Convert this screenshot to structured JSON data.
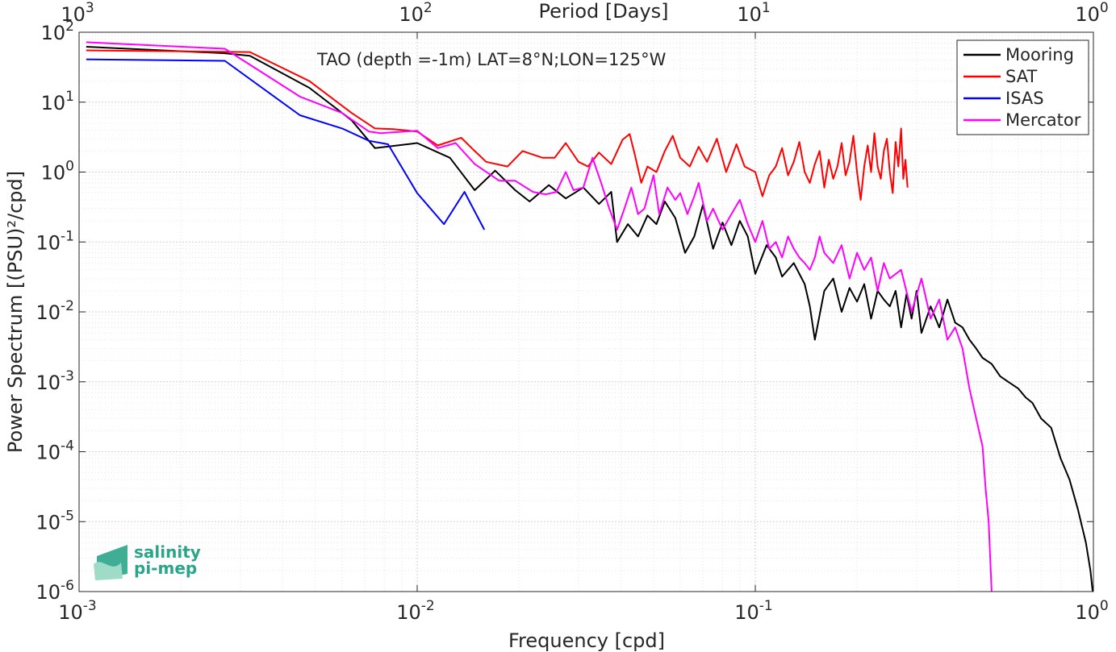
{
  "chart_data": {
    "type": "line",
    "xscale": "log",
    "yscale": "log",
    "xlim": [
      0.001,
      1
    ],
    "ylim": [
      1e-06,
      100
    ],
    "grid": "on (major + minor, dotted)",
    "legend_location": "top-right",
    "xlabel": "Frequency [cpd]",
    "ylabel": "Power Spectrum [(PSU)²/cpd]",
    "top_xlabel": "Period [Days]",
    "annotation": "TAO (depth =-1m) LAT=8°N;LON=125°W",
    "x_ticks": [
      {
        "base": "10",
        "exp": "-3",
        "value": 0.001
      },
      {
        "base": "10",
        "exp": "-2",
        "value": 0.01
      },
      {
        "base": "10",
        "exp": "-1",
        "value": 0.1
      },
      {
        "base": "10",
        "exp": "0",
        "value": 1
      }
    ],
    "top_ticks": [
      {
        "base": "10",
        "exp": "3",
        "value": 0.001
      },
      {
        "base": "10",
        "exp": "2",
        "value": 0.01
      },
      {
        "base": "10",
        "exp": "1",
        "value": 0.1
      },
      {
        "base": "10",
        "exp": "0",
        "value": 1
      }
    ],
    "y_ticks": [
      {
        "base": "10",
        "exp": "2",
        "value": 100
      },
      {
        "base": "10",
        "exp": "1",
        "value": 10
      },
      {
        "base": "10",
        "exp": "0",
        "value": 1
      },
      {
        "base": "10",
        "exp": "-1",
        "value": 0.1
      },
      {
        "base": "10",
        "exp": "-2",
        "value": 0.01
      },
      {
        "base": "10",
        "exp": "-3",
        "value": 0.001
      },
      {
        "base": "10",
        "exp": "-4",
        "value": 0.0001
      },
      {
        "base": "10",
        "exp": "-5",
        "value": 1e-05
      },
      {
        "base": "10",
        "exp": "-6",
        "value": 1e-06
      }
    ],
    "series": [
      {
        "name": "Mooring",
        "color": "#000000",
        "points": [
          [
            0.00105,
            62
          ],
          [
            0.0027,
            50
          ],
          [
            0.0032,
            46
          ],
          [
            0.0048,
            16
          ],
          [
            0.0064,
            5.5
          ],
          [
            0.0075,
            2.2
          ],
          [
            0.01,
            2.6
          ],
          [
            0.0125,
            1.6
          ],
          [
            0.0148,
            0.55
          ],
          [
            0.017,
            1.05
          ],
          [
            0.0195,
            0.55
          ],
          [
            0.0215,
            0.38
          ],
          [
            0.0245,
            0.65
          ],
          [
            0.0275,
            0.42
          ],
          [
            0.031,
            0.6
          ],
          [
            0.0345,
            0.35
          ],
          [
            0.0375,
            0.52
          ],
          [
            0.039,
            0.1
          ],
          [
            0.042,
            0.18
          ],
          [
            0.045,
            0.12
          ],
          [
            0.048,
            0.24
          ],
          [
            0.051,
            0.18
          ],
          [
            0.054,
            0.38
          ],
          [
            0.058,
            0.22
          ],
          [
            0.062,
            0.07
          ],
          [
            0.066,
            0.12
          ],
          [
            0.07,
            0.34
          ],
          [
            0.075,
            0.08
          ],
          [
            0.08,
            0.19
          ],
          [
            0.085,
            0.09
          ],
          [
            0.09,
            0.2
          ],
          [
            0.095,
            0.12
          ],
          [
            0.1,
            0.035
          ],
          [
            0.108,
            0.09
          ],
          [
            0.115,
            0.06
          ],
          [
            0.12,
            0.032
          ],
          [
            0.13,
            0.05
          ],
          [
            0.14,
            0.025
          ],
          [
            0.145,
            0.012
          ],
          [
            0.15,
            0.004
          ],
          [
            0.16,
            0.02
          ],
          [
            0.17,
            0.03
          ],
          [
            0.18,
            0.01
          ],
          [
            0.19,
            0.022
          ],
          [
            0.2,
            0.014
          ],
          [
            0.21,
            0.025
          ],
          [
            0.22,
            0.008
          ],
          [
            0.23,
            0.02
          ],
          [
            0.24,
            0.015
          ],
          [
            0.25,
            0.012
          ],
          [
            0.26,
            0.02
          ],
          [
            0.27,
            0.006
          ],
          [
            0.28,
            0.018
          ],
          [
            0.29,
            0.008
          ],
          [
            0.3,
            0.02
          ],
          [
            0.31,
            0.005
          ],
          [
            0.33,
            0.012
          ],
          [
            0.35,
            0.006
          ],
          [
            0.37,
            0.015
          ],
          [
            0.39,
            0.007
          ],
          [
            0.41,
            0.006
          ],
          [
            0.43,
            0.004
          ],
          [
            0.45,
            0.003
          ],
          [
            0.47,
            0.0022
          ],
          [
            0.5,
            0.0018
          ],
          [
            0.53,
            0.0012
          ],
          [
            0.56,
            0.001
          ],
          [
            0.6,
            0.0008
          ],
          [
            0.63,
            0.0006
          ],
          [
            0.66,
            0.0005
          ],
          [
            0.7,
            0.0003
          ],
          [
            0.75,
            0.00022
          ],
          [
            0.8,
            8e-05
          ],
          [
            0.85,
            4e-05
          ],
          [
            0.9,
            1.5e-05
          ],
          [
            0.95,
            5e-06
          ],
          [
            0.98,
            2e-06
          ],
          [
            0.995,
            1e-06
          ]
        ]
      },
      {
        "name": "SAT",
        "color": "#ff0000",
        "points": [
          [
            0.00105,
            55
          ],
          [
            0.0032,
            52
          ],
          [
            0.0048,
            20
          ],
          [
            0.0064,
            7
          ],
          [
            0.0075,
            4.2
          ],
          [
            0.0085,
            4.1
          ],
          [
            0.01,
            3.8
          ],
          [
            0.0115,
            2.4
          ],
          [
            0.0135,
            3.1
          ],
          [
            0.0148,
            2.0
          ],
          [
            0.016,
            1.4
          ],
          [
            0.0185,
            1.2
          ],
          [
            0.0205,
            2.0
          ],
          [
            0.0235,
            1.6
          ],
          [
            0.0255,
            1.6
          ],
          [
            0.0275,
            2.6
          ],
          [
            0.03,
            1.4
          ],
          [
            0.032,
            1.2
          ],
          [
            0.0345,
            1.9
          ],
          [
            0.0375,
            1.3
          ],
          [
            0.0405,
            2.9
          ],
          [
            0.0425,
            3.5
          ],
          [
            0.044,
            1.8
          ],
          [
            0.046,
            0.7
          ],
          [
            0.048,
            1.2
          ],
          [
            0.051,
            1.0
          ],
          [
            0.054,
            2.0
          ],
          [
            0.057,
            3.3
          ],
          [
            0.06,
            1.6
          ],
          [
            0.064,
            1.2
          ],
          [
            0.068,
            2.3
          ],
          [
            0.072,
            1.4
          ],
          [
            0.077,
            3.0
          ],
          [
            0.082,
            1.0
          ],
          [
            0.088,
            2.5
          ],
          [
            0.093,
            1.2
          ],
          [
            0.1,
            1.0
          ],
          [
            0.105,
            0.45
          ],
          [
            0.11,
            0.9
          ],
          [
            0.115,
            1.2
          ],
          [
            0.12,
            2.2
          ],
          [
            0.125,
            0.9
          ],
          [
            0.13,
            1.4
          ],
          [
            0.135,
            2.7
          ],
          [
            0.14,
            1.0
          ],
          [
            0.145,
            0.7
          ],
          [
            0.15,
            1.3
          ],
          [
            0.155,
            2.0
          ],
          [
            0.16,
            0.6
          ],
          [
            0.165,
            1.5
          ],
          [
            0.17,
            0.8
          ],
          [
            0.175,
            1.2
          ],
          [
            0.18,
            2.6
          ],
          [
            0.185,
            0.9
          ],
          [
            0.19,
            1.4
          ],
          [
            0.195,
            3.3
          ],
          [
            0.2,
            1.0
          ],
          [
            0.205,
            0.4
          ],
          [
            0.21,
            1.2
          ],
          [
            0.215,
            2.4
          ],
          [
            0.22,
            1.0
          ],
          [
            0.225,
            3.6
          ],
          [
            0.23,
            1.2
          ],
          [
            0.235,
            0.8
          ],
          [
            0.24,
            2.0
          ],
          [
            0.245,
            3.0
          ],
          [
            0.25,
            1.0
          ],
          [
            0.255,
            0.5
          ],
          [
            0.26,
            2.7
          ],
          [
            0.265,
            1.2
          ],
          [
            0.27,
            4.2
          ],
          [
            0.274,
            0.8
          ],
          [
            0.278,
            1.5
          ],
          [
            0.282,
            0.6
          ]
        ]
      },
      {
        "name": "ISAS",
        "color": "#0000ff",
        "points": [
          [
            0.00105,
            41
          ],
          [
            0.0027,
            39
          ],
          [
            0.0045,
            6.5
          ],
          [
            0.006,
            4.2
          ],
          [
            0.0072,
            2.8
          ],
          [
            0.0082,
            2.5
          ],
          [
            0.01,
            0.5
          ],
          [
            0.012,
            0.18
          ],
          [
            0.0138,
            0.52
          ],
          [
            0.0158,
            0.15
          ]
        ]
      },
      {
        "name": "Mercator",
        "color": "#ff00ff",
        "points": [
          [
            0.00105,
            72
          ],
          [
            0.0027,
            58
          ],
          [
            0.0045,
            12
          ],
          [
            0.006,
            7
          ],
          [
            0.0072,
            3.8
          ],
          [
            0.0078,
            3.6
          ],
          [
            0.01,
            3.9
          ],
          [
            0.0115,
            2.2
          ],
          [
            0.013,
            2.6
          ],
          [
            0.0148,
            1.3
          ],
          [
            0.0175,
            0.75
          ],
          [
            0.0195,
            0.75
          ],
          [
            0.022,
            0.52
          ],
          [
            0.024,
            0.48
          ],
          [
            0.0258,
            0.52
          ],
          [
            0.0275,
            1.0
          ],
          [
            0.029,
            0.55
          ],
          [
            0.031,
            0.6
          ],
          [
            0.033,
            1.6
          ],
          [
            0.035,
            0.7
          ],
          [
            0.037,
            0.3
          ],
          [
            0.039,
            0.15
          ],
          [
            0.041,
            0.3
          ],
          [
            0.043,
            0.6
          ],
          [
            0.045,
            0.25
          ],
          [
            0.047,
            0.3
          ],
          [
            0.05,
            0.9
          ],
          [
            0.052,
            0.25
          ],
          [
            0.055,
            0.6
          ],
          [
            0.058,
            0.4
          ],
          [
            0.06,
            0.5
          ],
          [
            0.063,
            0.25
          ],
          [
            0.066,
            0.45
          ],
          [
            0.068,
            0.7
          ],
          [
            0.072,
            0.2
          ],
          [
            0.075,
            0.3
          ],
          [
            0.08,
            0.15
          ],
          [
            0.085,
            0.25
          ],
          [
            0.09,
            0.4
          ],
          [
            0.095,
            0.18
          ],
          [
            0.1,
            0.1
          ],
          [
            0.105,
            0.2
          ],
          [
            0.11,
            0.08
          ],
          [
            0.115,
            0.1
          ],
          [
            0.12,
            0.06
          ],
          [
            0.125,
            0.12
          ],
          [
            0.13,
            0.08
          ],
          [
            0.135,
            0.06
          ],
          [
            0.14,
            0.05
          ],
          [
            0.145,
            0.04
          ],
          [
            0.15,
            0.06
          ],
          [
            0.155,
            0.12
          ],
          [
            0.16,
            0.07
          ],
          [
            0.17,
            0.05
          ],
          [
            0.18,
            0.09
          ],
          [
            0.19,
            0.03
          ],
          [
            0.2,
            0.07
          ],
          [
            0.21,
            0.04
          ],
          [
            0.22,
            0.06
          ],
          [
            0.23,
            0.02
          ],
          [
            0.24,
            0.05
          ],
          [
            0.25,
            0.03
          ],
          [
            0.27,
            0.04
          ],
          [
            0.29,
            0.01
          ],
          [
            0.31,
            0.03
          ],
          [
            0.33,
            0.008
          ],
          [
            0.35,
            0.015
          ],
          [
            0.37,
            0.004
          ],
          [
            0.39,
            0.006
          ],
          [
            0.41,
            0.003
          ],
          [
            0.43,
            0.0008
          ],
          [
            0.45,
            0.0003
          ],
          [
            0.47,
            0.00012
          ],
          [
            0.48,
            3e-05
          ],
          [
            0.49,
            1e-05
          ],
          [
            0.5,
            1e-06
          ]
        ]
      }
    ]
  },
  "logo": {
    "line1": "salinity",
    "line2": "pi-mep"
  },
  "colors": {
    "axis": "#262626",
    "grid": "#dcdcdc",
    "logo": "#2aa58a"
  }
}
